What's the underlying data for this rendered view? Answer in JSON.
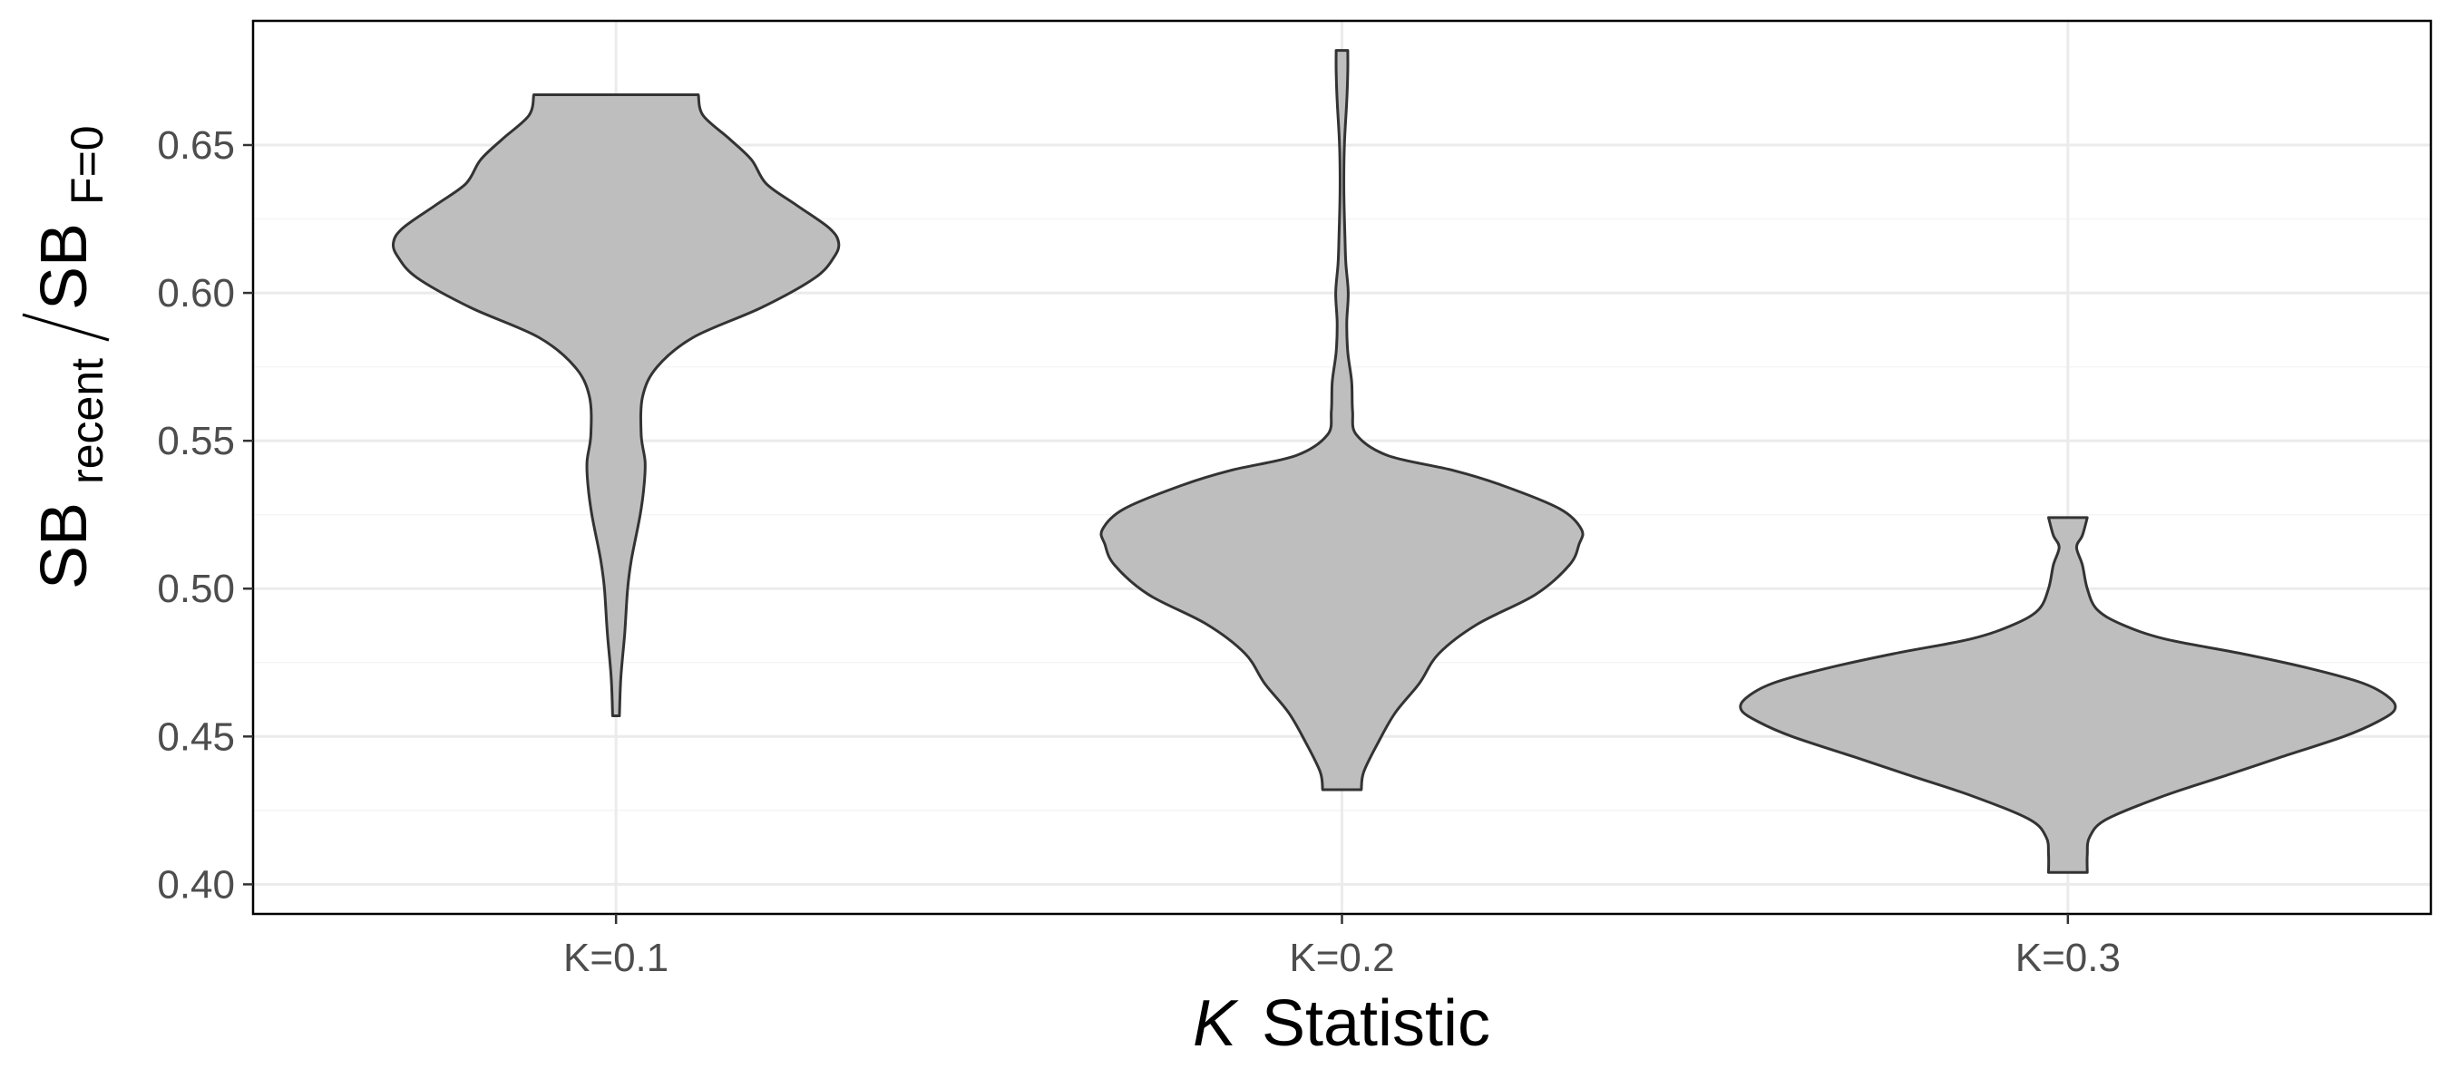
{
  "chart_data": {
    "type": "violin",
    "categories": [
      "K=0.1",
      "K=0.2",
      "K=0.3"
    ],
    "xlabel": {
      "italic_part": "K",
      "rest": "Statistic"
    },
    "ylabel": {
      "numerator": "SB",
      "numerator_sub": "recent",
      "denominator": "SB",
      "denominator_sub": "F=0"
    },
    "ylim": [
      0.39,
      0.692
    ],
    "yticks": [
      0.4,
      0.45,
      0.5,
      0.55,
      0.6,
      0.65
    ],
    "ytick_labels": [
      "0.40",
      "0.45",
      "0.50",
      "0.55",
      "0.60",
      "0.65"
    ],
    "grid": true,
    "violin_fill": "#bebebe",
    "violin_stroke": "#333333",
    "violins": [
      {
        "category": "K=0.1",
        "ymin": 0.457,
        "ymax": 0.667,
        "density": [
          [
            0.457,
            0.007
          ],
          [
            0.47,
            0.01
          ],
          [
            0.485,
            0.018
          ],
          [
            0.5,
            0.024
          ],
          [
            0.51,
            0.032
          ],
          [
            0.525,
            0.05
          ],
          [
            0.535,
            0.058
          ],
          [
            0.543,
            0.06
          ],
          [
            0.552,
            0.052
          ],
          [
            0.565,
            0.055
          ],
          [
            0.575,
            0.085
          ],
          [
            0.585,
            0.16
          ],
          [
            0.595,
            0.3
          ],
          [
            0.605,
            0.41
          ],
          [
            0.612,
            0.45
          ],
          [
            0.617,
            0.46
          ],
          [
            0.622,
            0.44
          ],
          [
            0.63,
            0.37
          ],
          [
            0.637,
            0.31
          ],
          [
            0.645,
            0.28
          ],
          [
            0.652,
            0.235
          ],
          [
            0.66,
            0.18
          ],
          [
            0.667,
            0.17
          ]
        ]
      },
      {
        "category": "K=0.2",
        "ymin": 0.432,
        "ymax": 0.682,
        "density": [
          [
            0.432,
            0.04
          ],
          [
            0.438,
            0.045
          ],
          [
            0.448,
            0.075
          ],
          [
            0.458,
            0.11
          ],
          [
            0.468,
            0.16
          ],
          [
            0.478,
            0.2
          ],
          [
            0.488,
            0.28
          ],
          [
            0.498,
            0.4
          ],
          [
            0.508,
            0.47
          ],
          [
            0.515,
            0.49
          ],
          [
            0.52,
            0.495
          ],
          [
            0.527,
            0.45
          ],
          [
            0.535,
            0.33
          ],
          [
            0.54,
            0.23
          ],
          [
            0.545,
            0.095
          ],
          [
            0.552,
            0.03
          ],
          [
            0.56,
            0.022
          ],
          [
            0.57,
            0.02
          ],
          [
            0.58,
            0.012
          ],
          [
            0.59,
            0.01
          ],
          [
            0.6,
            0.013
          ],
          [
            0.61,
            0.008
          ],
          [
            0.62,
            0.006
          ],
          [
            0.635,
            0.004
          ],
          [
            0.65,
            0.005
          ],
          [
            0.665,
            0.01
          ],
          [
            0.675,
            0.012
          ],
          [
            0.682,
            0.012
          ]
        ]
      },
      {
        "category": "K=0.3",
        "ymin": 0.404,
        "ymax": 0.524,
        "density": [
          [
            0.404,
            0.04
          ],
          [
            0.41,
            0.04
          ],
          [
            0.416,
            0.045
          ],
          [
            0.422,
            0.08
          ],
          [
            0.43,
            0.2
          ],
          [
            0.437,
            0.33
          ],
          [
            0.443,
            0.44
          ],
          [
            0.45,
            0.57
          ],
          [
            0.455,
            0.64
          ],
          [
            0.459,
            0.675
          ],
          [
            0.463,
            0.665
          ],
          [
            0.468,
            0.61
          ],
          [
            0.473,
            0.5
          ],
          [
            0.478,
            0.36
          ],
          [
            0.483,
            0.2
          ],
          [
            0.488,
            0.11
          ],
          [
            0.493,
            0.06
          ],
          [
            0.5,
            0.04
          ],
          [
            0.508,
            0.03
          ],
          [
            0.514,
            0.018
          ],
          [
            0.518,
            0.03
          ],
          [
            0.524,
            0.04
          ]
        ]
      }
    ]
  }
}
